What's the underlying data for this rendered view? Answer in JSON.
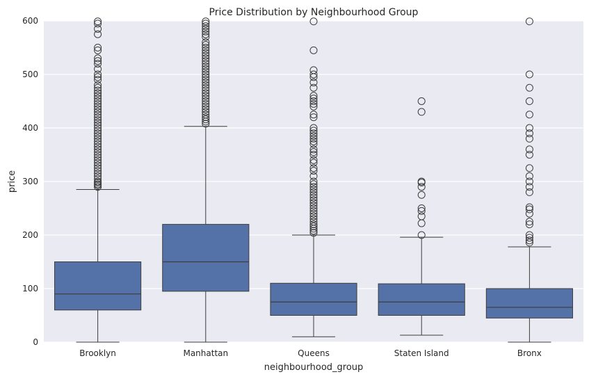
{
  "chart_data": {
    "type": "box",
    "title": "Price Distribution by Neighbourhood Group",
    "xlabel": "neighbourhood_group",
    "ylabel": "price",
    "ylim": [
      0,
      600
    ],
    "yticks": [
      0,
      100,
      200,
      300,
      400,
      500,
      600
    ],
    "grid": "horizontal",
    "box_color": "#5572a8",
    "line_color": "#3d3d3d",
    "background": "#eaeaf2",
    "categories": [
      "Brooklyn",
      "Manhattan",
      "Queens",
      "Staten Island",
      "Bronx"
    ],
    "boxes": [
      {
        "name": "Brooklyn",
        "whisker_low": 0,
        "q1": 60,
        "median": 90,
        "q3": 150,
        "whisker_high": 285,
        "outliers": [
          290,
          293,
          295,
          298,
          300,
          305,
          310,
          315,
          320,
          325,
          330,
          335,
          340,
          345,
          350,
          355,
          360,
          365,
          370,
          375,
          380,
          385,
          390,
          395,
          400,
          405,
          410,
          415,
          420,
          425,
          430,
          435,
          440,
          445,
          450,
          455,
          460,
          465,
          470,
          475,
          480,
          490,
          495,
          500,
          510,
          520,
          525,
          530,
          545,
          550,
          575,
          585,
          595,
          599
        ]
      },
      {
        "name": "Manhattan",
        "whisker_low": 0,
        "q1": 95,
        "median": 150,
        "q3": 220,
        "whisker_high": 403,
        "outliers": [
          408,
          412,
          416,
          420,
          425,
          430,
          435,
          440,
          445,
          450,
          455,
          460,
          465,
          470,
          475,
          480,
          485,
          490,
          495,
          500,
          505,
          510,
          515,
          520,
          525,
          530,
          535,
          540,
          545,
          550,
          555,
          560,
          570,
          575,
          580,
          585,
          590,
          595,
          599
        ]
      },
      {
        "name": "Queens",
        "whisker_low": 10,
        "q1": 50,
        "median": 75,
        "q3": 110,
        "whisker_high": 200,
        "outliers": [
          204,
          208,
          212,
          216,
          220,
          225,
          230,
          235,
          240,
          245,
          250,
          255,
          260,
          265,
          270,
          275,
          280,
          285,
          290,
          295,
          300,
          310,
          320,
          325,
          335,
          340,
          350,
          355,
          360,
          370,
          375,
          380,
          385,
          390,
          395,
          400,
          420,
          425,
          440,
          445,
          450,
          455,
          460,
          475,
          485,
          495,
          500,
          508,
          545,
          599
        ]
      },
      {
        "name": "Staten Island",
        "whisker_low": 13,
        "q1": 50,
        "median": 75,
        "q3": 109,
        "whisker_high": 196,
        "outliers": [
          200,
          222,
          235,
          245,
          250,
          275,
          290,
          298,
          300,
          430,
          450
        ]
      },
      {
        "name": "Bronx",
        "whisker_low": 0,
        "q1": 45,
        "median": 65,
        "q3": 100,
        "whisker_high": 178,
        "outliers": [
          186,
          190,
          195,
          200,
          220,
          225,
          240,
          248,
          252,
          280,
          290,
          300,
          310,
          325,
          350,
          360,
          380,
          390,
          400,
          425,
          450,
          475,
          500,
          599
        ]
      }
    ]
  }
}
